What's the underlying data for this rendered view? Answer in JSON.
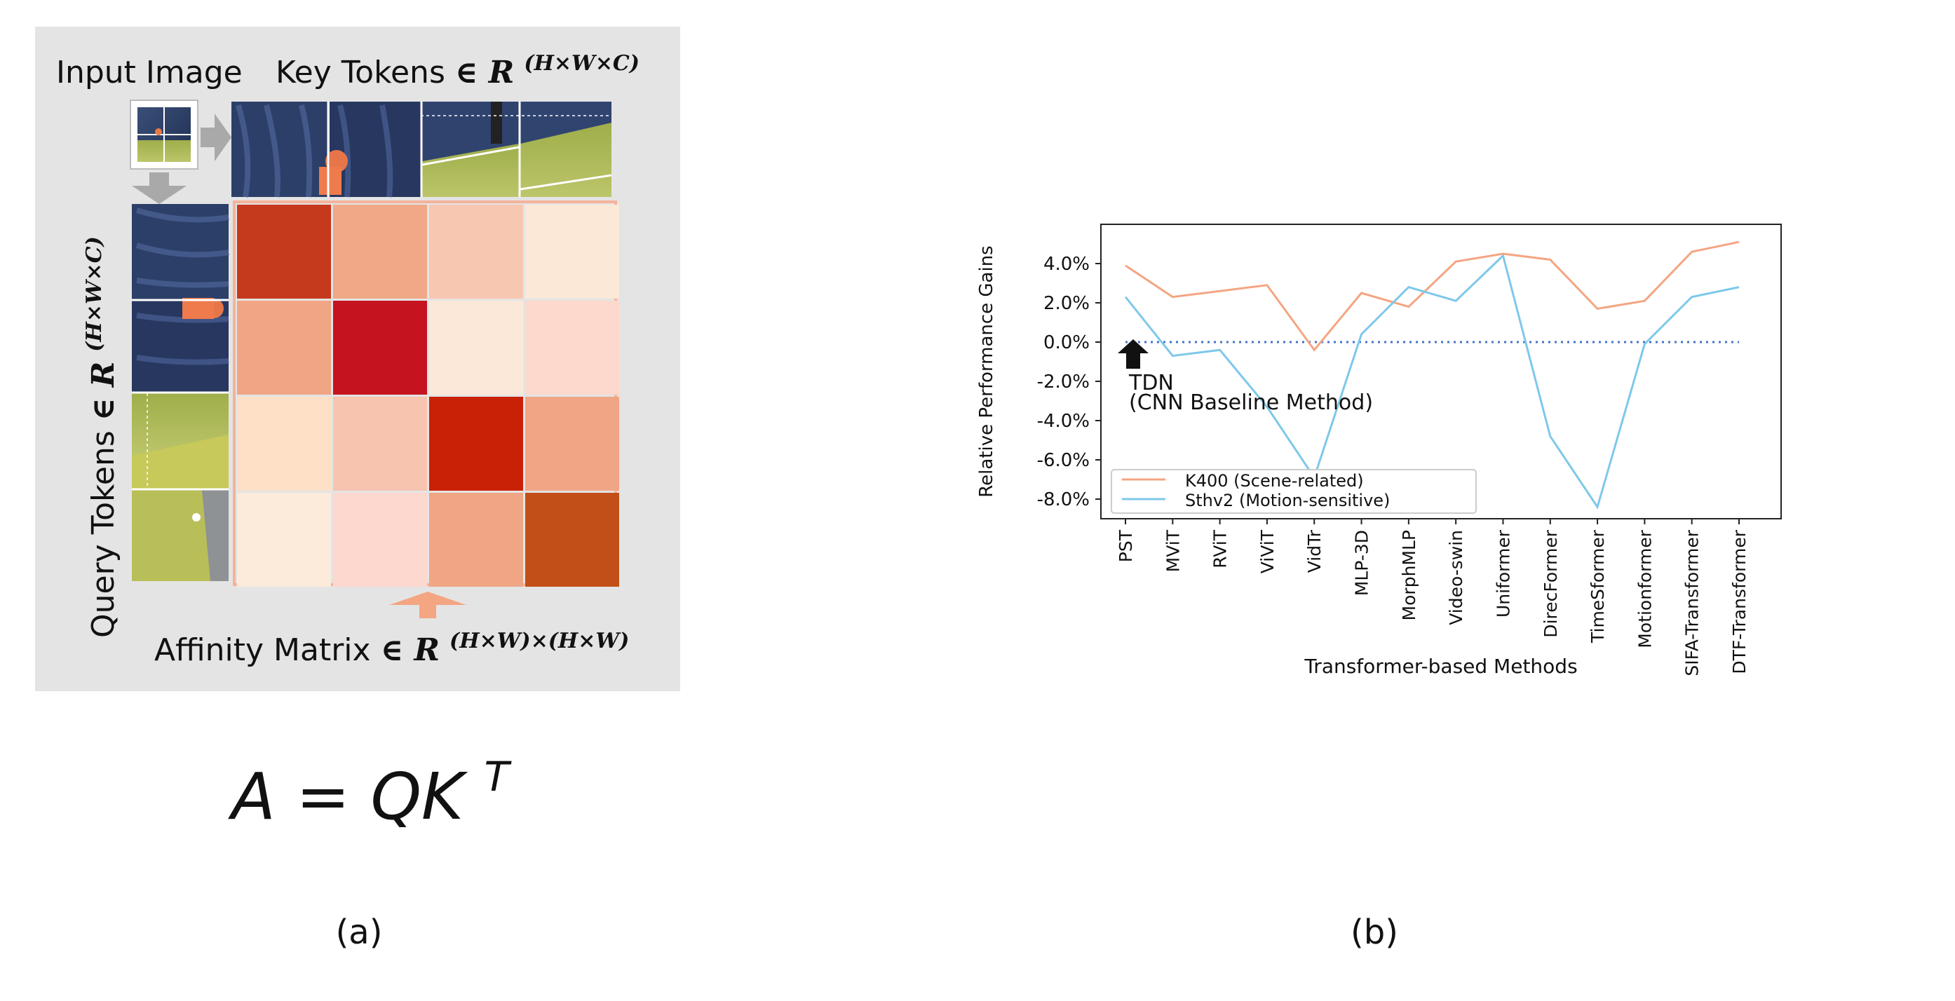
{
  "panel_a": {
    "input_image_label": "Input Image",
    "key_tokens_label": "Key Tokens",
    "key_tokens_math": "∈ R",
    "key_tokens_sup": "(H×W×C)",
    "query_tokens_label": "Query Tokens",
    "query_tokens_math": "∈ R",
    "query_tokens_sup": "(H×W×C)",
    "affinity_label": "Affinity Matrix",
    "affinity_math": "∈ R",
    "affinity_sup": "(H×W)×(H×W)",
    "affinity_matrix": [
      [
        "#c5391c",
        "#f1a886",
        "#f7c7b1",
        "#fbe8d7"
      ],
      [
        "#f0a585",
        "#c5141f",
        "#fce8d8",
        "#fdd8cc"
      ],
      [
        "#fde0c5",
        "#f7c4b0",
        "#c92105",
        "#f0a585"
      ],
      [
        "#fcebdb",
        "#fdd8cf",
        "#f0a585",
        "#c14f17"
      ]
    ],
    "equation_lhs": "A = QK",
    "equation_sup": "T",
    "caption": "(a)"
  },
  "panel_b": {
    "caption": "(b)",
    "annotation_line1": "TDN",
    "annotation_line2": "(CNN Baseline Method)",
    "legend_placement": "lower-left",
    "grid": false
  },
  "chart_data": {
    "type": "line",
    "title": "",
    "xlabel": "Transformer-based Methods",
    "ylabel": "Relative Performance Gains",
    "ylim": [
      -9.0,
      6.0
    ],
    "yticks": [
      "4.0%",
      "2.0%",
      "0.0%",
      "-2.0%",
      "-4.0%",
      "-6.0%",
      "-8.0%"
    ],
    "ytick_values": [
      4,
      2,
      0,
      -2,
      -4,
      -6,
      -8
    ],
    "categories": [
      "PST",
      "MViT",
      "RViT",
      "ViViT",
      "VidTr",
      "MLP-3D",
      "MorphMLP",
      "Video-swin",
      "Uniformer",
      "DirecFormer",
      "TimeSformer",
      "Motionformer",
      "SIFA-Transformer",
      "DTF-Transformer"
    ],
    "baseline": 0.0,
    "series": [
      {
        "name": "K400 (Scene-related)",
        "color": "#f4a582",
        "values": [
          3.9,
          2.3,
          2.6,
          2.9,
          -0.4,
          2.5,
          1.8,
          4.1,
          4.5,
          4.2,
          1.7,
          2.1,
          4.6,
          5.1
        ]
      },
      {
        "name": "Sthv2 (Motion-sensitive)",
        "color": "#7ec8ea",
        "values": [
          2.3,
          -0.7,
          -0.4,
          -3.3,
          -6.9,
          0.4,
          2.8,
          2.1,
          4.4,
          -4.8,
          -8.4,
          -0.1,
          2.3,
          2.8
        ]
      }
    ]
  }
}
